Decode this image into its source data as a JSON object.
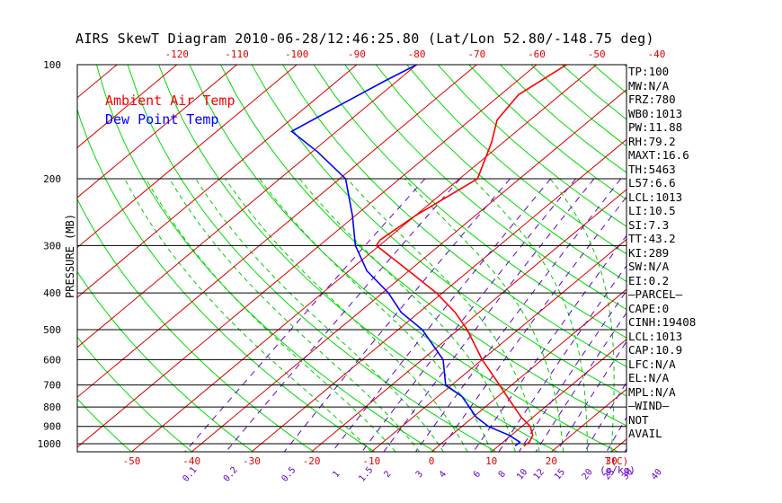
{
  "title": "AIRS SkewT Diagram 2010-06-28/12:46:25.80 (Lat/Lon 52.80/-148.75 deg)",
  "stats": [
    "TP:100",
    "MW:N/A",
    "FRZ:780",
    "WB0:1013",
    "PW:11.88",
    "RH:79.2",
    "MAXT:16.6",
    "TH:5463",
    "L57:6.6",
    "LCL:1013",
    "LI:10.5",
    "SI:7.3",
    "TT:43.2",
    "KI:289",
    "SW:N/A",
    "EI:0.2",
    "—PARCEL—",
    "CAPE:0",
    "CINH:19408",
    "LCL:1013",
    "CAP:10.9",
    "LFC:N/A",
    "EL:N/A",
    "MPL:N/A",
    "—WIND—",
    "NOT",
    "AVAIL"
  ],
  "chart_data": {
    "type": "line",
    "ylabel": "PRESSURE (MB)",
    "xlabel": "T(C)",
    "mixing_ratio_label": "(g/kg)",
    "y_scale": "log",
    "ylim": [
      1050,
      100
    ],
    "pressure_ticks": [
      100,
      200,
      300,
      400,
      500,
      600,
      700,
      800,
      900,
      1000
    ],
    "top_temp_ticks": [
      -120,
      -110,
      -100,
      -90,
      -80,
      -70,
      -60,
      -50,
      -40
    ],
    "bottom_temp_ticks": [
      -50,
      -40,
      -30,
      -20,
      -10,
      0,
      10,
      20,
      30
    ],
    "mixing_ratio_ticks": [
      "0.1",
      "0.2",
      "0.5",
      "1",
      "1.5",
      "2",
      "3",
      "4",
      "6",
      "8",
      "10",
      "12",
      "15",
      "20",
      "25",
      "30",
      "40"
    ],
    "legend": [
      "Ambient Air Temp",
      "Dew Point Temp"
    ],
    "legend_position": "top-left",
    "colors": {
      "ambient": "#ff0000",
      "dewpoint": "#0000ff",
      "dry_adiabat": "#00dd00",
      "moist_adiabat": "#00cc00",
      "isotherm": "#dd0000",
      "mixing_ratio": "#6600cc",
      "isobar": "#000000"
    },
    "series": [
      {
        "name": "Ambient Air Temp",
        "points": [
          [
            1013,
            14.2
          ],
          [
            990,
            14.4
          ],
          [
            950,
            13.6
          ],
          [
            900,
            11.4
          ],
          [
            850,
            8.0
          ],
          [
            750,
            1.5
          ],
          [
            700,
            -2.0
          ],
          [
            600,
            -10.0
          ],
          [
            500,
            -18.5
          ],
          [
            450,
            -24.0
          ],
          [
            400,
            -31.0
          ],
          [
            350,
            -40.0
          ],
          [
            300,
            -50.5
          ],
          [
            290,
            -51.0
          ],
          [
            250,
            -50.0
          ],
          [
            200,
            -47.0
          ],
          [
            160,
            -52.0
          ],
          [
            140,
            -55.5
          ],
          [
            120,
            -57.0
          ],
          [
            100,
            -55.0
          ]
        ]
      },
      {
        "name": "Dew Point Temp",
        "points": [
          [
            1013,
            12.8
          ],
          [
            990,
            12.8
          ],
          [
            950,
            9.7
          ],
          [
            900,
            4.4
          ],
          [
            850,
            0.5
          ],
          [
            750,
            -6.0
          ],
          [
            700,
            -11.0
          ],
          [
            600,
            -16.5
          ],
          [
            500,
            -26.0
          ],
          [
            450,
            -33.0
          ],
          [
            400,
            -39.0
          ],
          [
            350,
            -47.0
          ],
          [
            300,
            -54.0
          ],
          [
            250,
            -60.5
          ],
          [
            200,
            -69.0
          ],
          [
            170,
            -79.0
          ],
          [
            150,
            -87.5
          ],
          [
            130,
            -85.0
          ],
          [
            110,
            -82.0
          ],
          [
            100,
            -80.0
          ]
        ]
      }
    ]
  }
}
